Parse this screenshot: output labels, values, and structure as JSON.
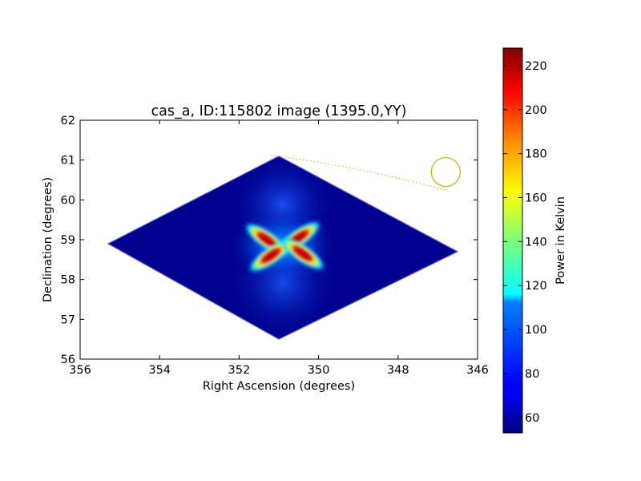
{
  "chart_data": {
    "type": "heatmap",
    "title": "cas_a, ID:115802 image (1395.0,YY)",
    "xlabel": "Right Ascension (degrees)",
    "ylabel": "Declination (degrees)",
    "xlim": [
      356,
      346
    ],
    "ylim": [
      56,
      62
    ],
    "xticks": [
      356,
      354,
      352,
      350,
      348,
      346
    ],
    "yticks": [
      56,
      57,
      58,
      59,
      60,
      61,
      62
    ],
    "xtick_labels": [
      "356",
      "354",
      "352",
      "350",
      "348",
      "346"
    ],
    "ytick_labels": [
      "56",
      "57",
      "58",
      "59",
      "60",
      "61",
      "62"
    ],
    "colorbar": {
      "label": "Power in Kelvin",
      "range": [
        53,
        228
      ],
      "ticks": [
        60,
        80,
        100,
        120,
        140,
        160,
        180,
        200,
        220
      ],
      "tick_labels": [
        "60",
        "80",
        "100",
        "120",
        "140",
        "160",
        "180",
        "200",
        "220"
      ],
      "colormap": "jet"
    },
    "footprint": {
      "shape": "diamond",
      "vertices_ra_dec": [
        [
          355.3,
          58.9
        ],
        [
          351.0,
          61.1
        ],
        [
          346.5,
          58.7
        ],
        [
          351.0,
          56.5
        ]
      ],
      "background_value": 55
    },
    "features": [
      {
        "name": "upper-left lobe",
        "ra": 351.3,
        "dec": 59.0,
        "peak": 225
      },
      {
        "name": "upper-right lobe",
        "ra": 350.5,
        "dec": 59.05,
        "peak": 220
      },
      {
        "name": "lower-left lobe",
        "ra": 351.2,
        "dec": 58.6,
        "peak": 222
      },
      {
        "name": "lower-right lobe",
        "ra": 350.4,
        "dec": 58.65,
        "peak": 220
      }
    ],
    "overlay": {
      "circle_center": [
        346.8,
        60.7
      ],
      "circle_color": "#c8b400",
      "dotted_line_color": "#c8b400"
    }
  }
}
